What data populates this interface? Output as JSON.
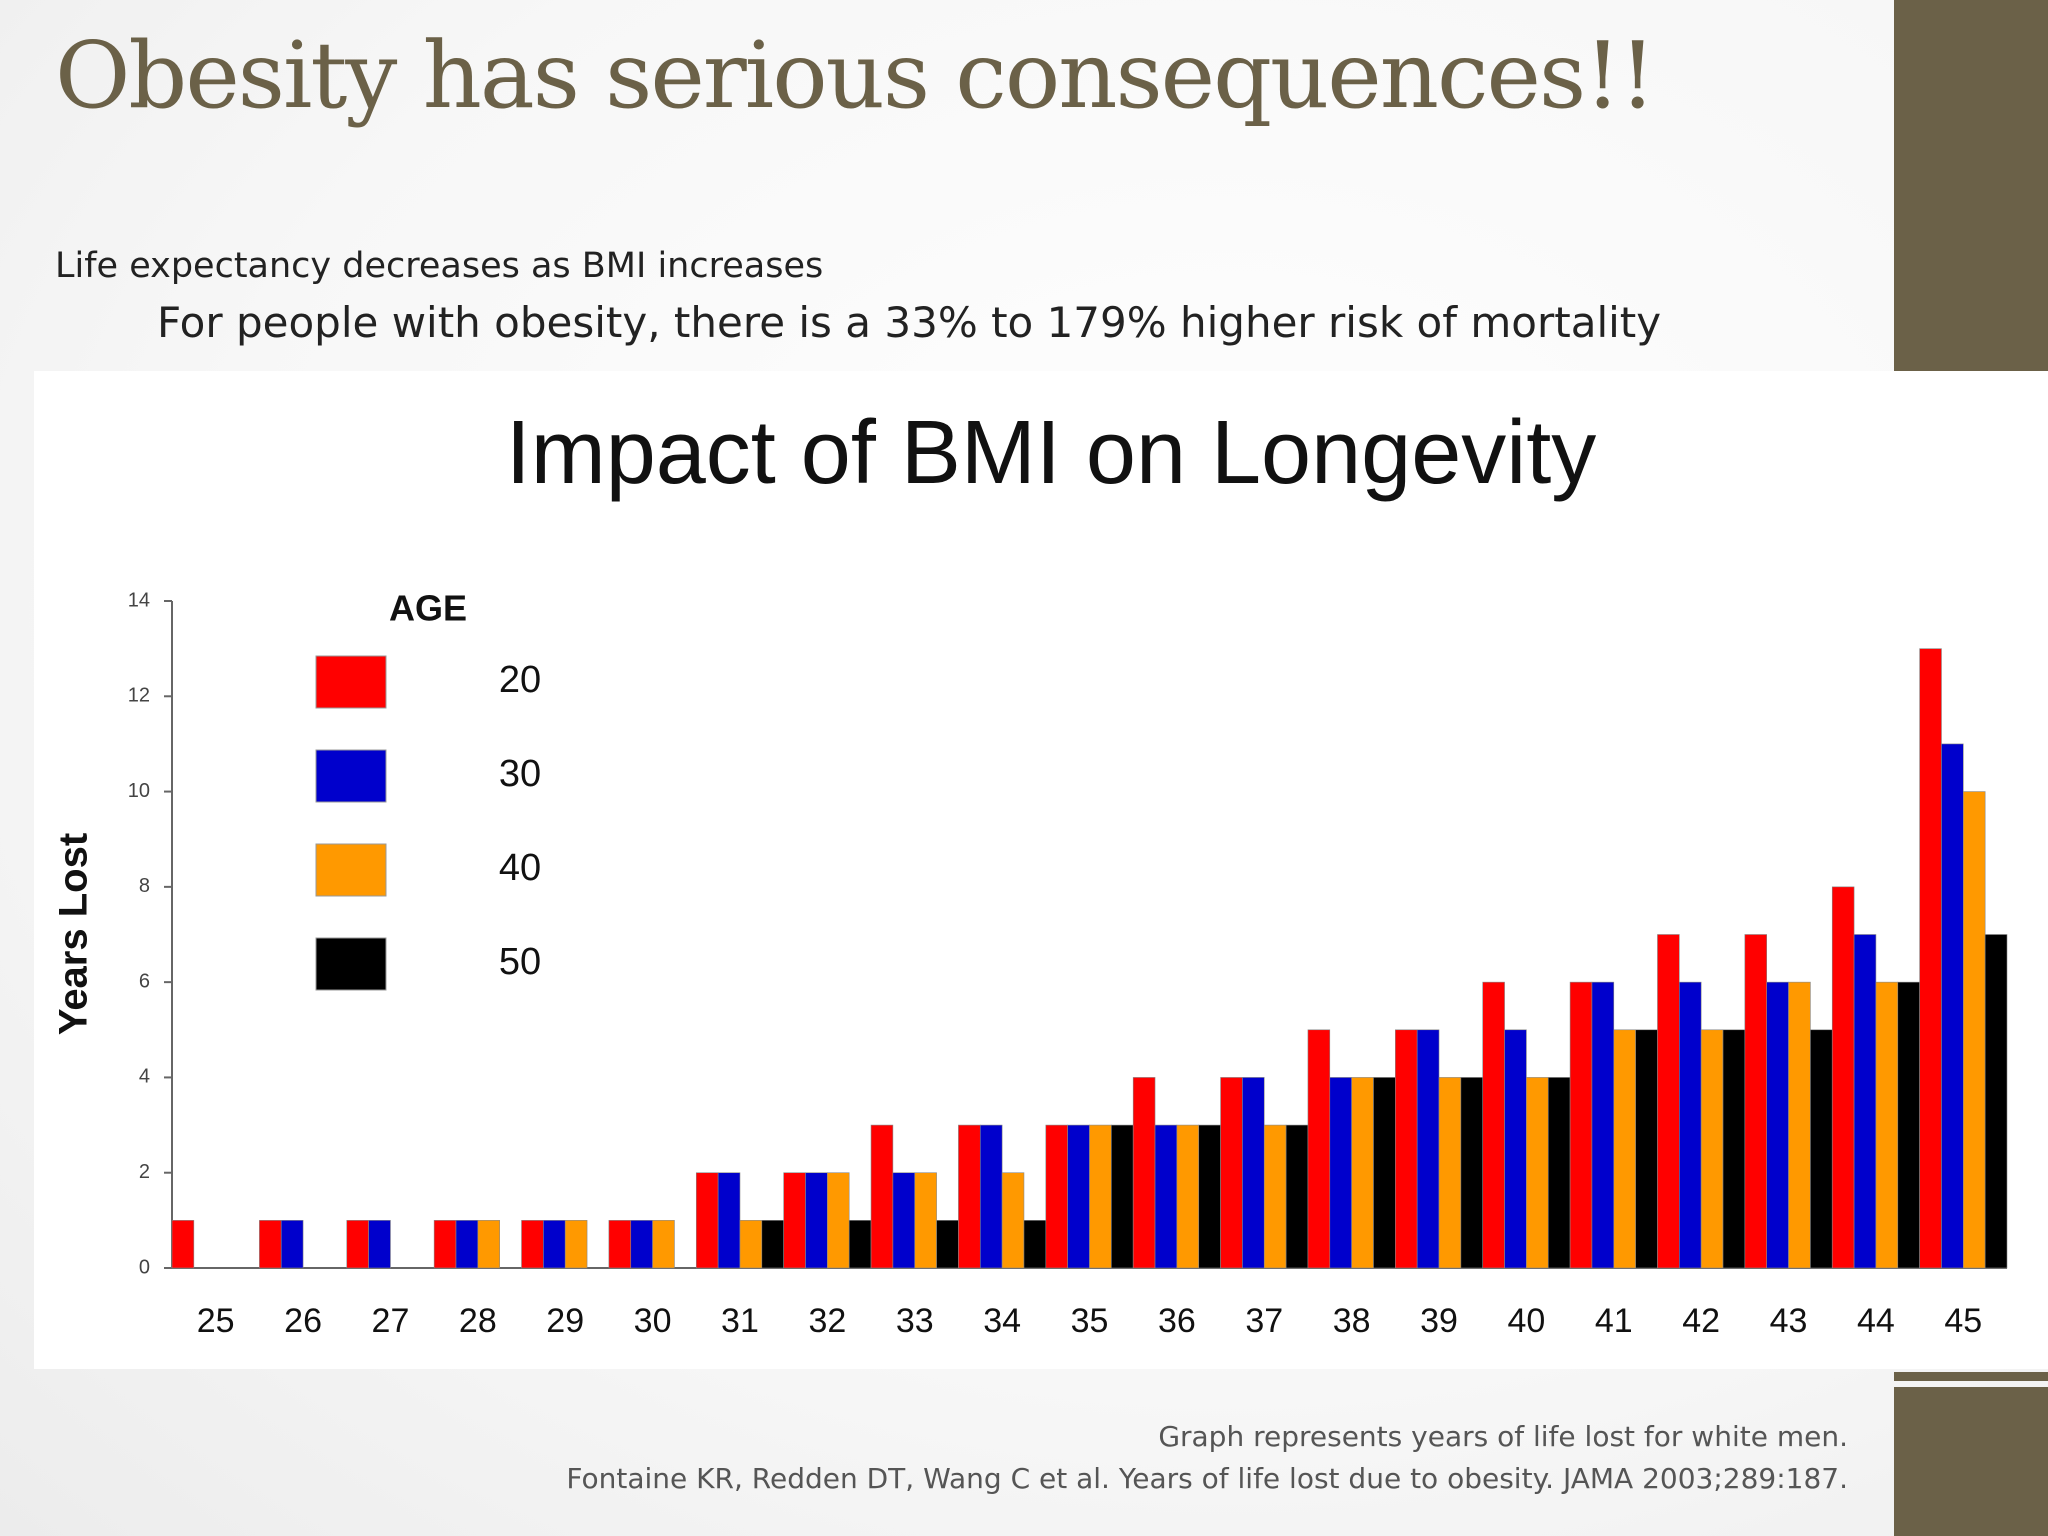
{
  "slide": {
    "title": "Obesity has serious consequences!!",
    "bullet": "Life expectancy decreases as BMI increases",
    "sub_bullet": "For people with obesity, there is a 33% to 179% higher risk of mortality",
    "footnote_1": "Graph represents years of life lost for white men.",
    "footnote_2": "Fontaine KR, Redden  DT, Wang C et al. Years of life lost due to obesity. JAMA 2003;289:187."
  },
  "chart_data": {
    "type": "bar",
    "title": "Impact of BMI on Longevity",
    "y_label": "Years Lost",
    "legend_title": "AGE",
    "categories": [
      "25",
      "26",
      "27",
      "28",
      "29",
      "30",
      "31",
      "32",
      "33",
      "34",
      "35",
      "36",
      "37",
      "38",
      "39",
      "40",
      "41",
      "42",
      "43",
      "44",
      "45"
    ],
    "series": [
      {
        "name": "20",
        "color": "#ff0000",
        "values": [
          1,
          1,
          1,
          1,
          1,
          1,
          2,
          2,
          3,
          3,
          3,
          4,
          4,
          5,
          5,
          6,
          6,
          7,
          7,
          8,
          13
        ]
      },
      {
        "name": "30",
        "color": "#0000cc",
        "values": [
          0,
          1,
          1,
          1,
          1,
          1,
          2,
          2,
          2,
          3,
          3,
          3,
          4,
          4,
          5,
          5,
          6,
          6,
          6,
          7,
          11
        ]
      },
      {
        "name": "40",
        "color": "#ff9900",
        "values": [
          0,
          0,
          0,
          1,
          1,
          1,
          1,
          2,
          2,
          2,
          3,
          3,
          3,
          4,
          4,
          4,
          5,
          5,
          6,
          6,
          10
        ]
      },
      {
        "name": "50",
        "color": "#000000",
        "values": [
          0,
          0,
          0,
          0,
          0,
          0,
          1,
          1,
          1,
          1,
          3,
          3,
          3,
          4,
          4,
          4,
          5,
          5,
          5,
          6,
          7
        ]
      }
    ],
    "ylim": [
      0,
      14
    ],
    "yticks": [
      0,
      2,
      4,
      6,
      8,
      10,
      12,
      14
    ],
    "grid": false
  }
}
